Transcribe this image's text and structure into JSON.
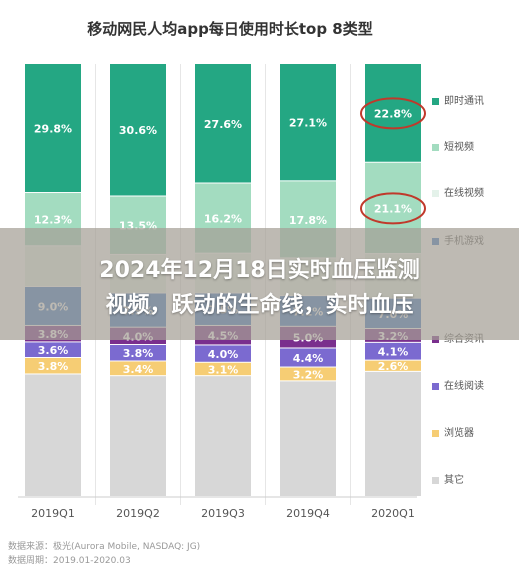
{
  "chart_data": {
    "type": "bar",
    "stacked": true,
    "percent": true,
    "title": "移动网民人均app每日使用时长top 8类型",
    "categories": [
      "2019Q1",
      "2019Q2",
      "2019Q3",
      "2019Q4",
      "2020Q1"
    ],
    "series": [
      {
        "name": "即时通讯",
        "color": "#24a783",
        "values": [
          29.8,
          30.6,
          27.6,
          27.1,
          22.8
        ],
        "labels": [
          "29.8%",
          "30.6%",
          "27.6%",
          "27.1%",
          "22.8%"
        ]
      },
      {
        "name": "短视频",
        "color": "#a3dcc0",
        "values": [
          12.3,
          13.5,
          16.2,
          17.8,
          21.1
        ],
        "labels": [
          "12.3%",
          "13.5%",
          "16.2%",
          "17.8%",
          "21.1%"
        ]
      },
      {
        "name": "在线视频",
        "color": "#e4f2ea",
        "values": [
          9.4,
          8.9,
          9.2,
          8.7,
          10.3
        ],
        "labels": [
          "",
          "",
          "",
          "",
          ""
        ]
      },
      {
        "name": "手机游戏",
        "color": "#3a78c4",
        "values": [
          9.0,
          7.9,
          7.5,
          7.1,
          7.0
        ],
        "labels": [
          "9.0%",
          "7.9%",
          "7.5%",
          "7.1%",
          "7.0%"
        ]
      },
      {
        "name": "综合资讯",
        "color": "#7a2f8d",
        "values": [
          3.8,
          4.0,
          4.5,
          5.0,
          3.2
        ],
        "labels": [
          "3.8%",
          "4.0%",
          "4.5%",
          "5.0%",
          "3.2%"
        ]
      },
      {
        "name": "在线阅读",
        "color": "#7b6ad0",
        "values": [
          3.6,
          3.8,
          4.0,
          4.4,
          4.1
        ],
        "labels": [
          "3.6%",
          "3.8%",
          "4.0%",
          "4.4%",
          "4.1%"
        ]
      },
      {
        "name": "浏览器",
        "color": "#f6cd74",
        "values": [
          3.8,
          3.4,
          3.1,
          3.2,
          2.6
        ],
        "labels": [
          "3.8%",
          "3.4%",
          "3.1%",
          "3.2%",
          "2.6%"
        ]
      },
      {
        "name": "其它",
        "color": "#d7d7d7",
        "values": [
          28.3,
          27.9,
          27.9,
          26.7,
          28.9
        ],
        "labels": [
          "",
          "",
          "",
          "",
          ""
        ]
      }
    ],
    "highlighted_labels": [
      "22.8%",
      "21.1%"
    ],
    "highlight_color": "#c0392b",
    "ylim": [
      0,
      100
    ],
    "legend_position": "right",
    "grid": false
  },
  "banner": {
    "line1": "2024年12月18日实时血压监测",
    "line2": "视频，跃动的生命线，实时血压"
  },
  "source": {
    "line1": "数据来源：极光(Aurora Mobile, NASDAQ: JG)",
    "line2": "数据周期：2019.01-2020.03"
  }
}
